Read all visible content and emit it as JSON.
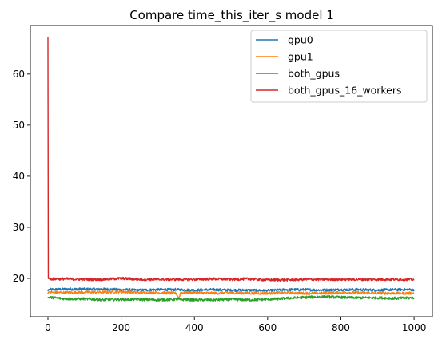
{
  "chart_data": {
    "type": "line",
    "title": "Compare time_this_iter_s model 1",
    "xlabel": "",
    "ylabel": "",
    "xlim": [
      -48,
      1050
    ],
    "ylim": [
      12.5,
      69.5
    ],
    "x_ticks": [
      0,
      200,
      400,
      600,
      800,
      1000
    ],
    "y_ticks": [
      20,
      30,
      40,
      50,
      60
    ],
    "grid": false,
    "legend_position": "upper-right",
    "x_range": [
      0,
      1000
    ],
    "series": [
      {
        "name": "gpu0",
        "color": "#1f77b4",
        "x": [
          0,
          1,
          3,
          50,
          100,
          150,
          200,
          250,
          300,
          350,
          400,
          450,
          500,
          550,
          600,
          650,
          700,
          750,
          800,
          850,
          900,
          950,
          1000
        ],
        "values": [
          17.5,
          17.8,
          17.8,
          17.9,
          17.9,
          17.9,
          17.8,
          17.7,
          17.8,
          17.8,
          17.7,
          17.8,
          17.7,
          17.7,
          17.6,
          17.8,
          17.8,
          17.7,
          17.8,
          17.8,
          17.7,
          17.8,
          17.8
        ]
      },
      {
        "name": "gpu1",
        "color": "#ff7f0e",
        "x": [
          0,
          1,
          3,
          50,
          100,
          150,
          200,
          250,
          300,
          350,
          358,
          362,
          400,
          450,
          500,
          550,
          600,
          650,
          700,
          750,
          800,
          850,
          900,
          950,
          1000
        ],
        "values": [
          17.0,
          17.3,
          17.3,
          17.2,
          17.3,
          17.3,
          17.4,
          17.2,
          17.2,
          17.1,
          16.0,
          17.2,
          17.2,
          17.1,
          17.2,
          17.1,
          17.1,
          17.2,
          17.1,
          17.1,
          17.2,
          17.2,
          17.1,
          17.1,
          17.1
        ]
      },
      {
        "name": "both_gpus",
        "color": "#2ca02c",
        "x": [
          0,
          1,
          3,
          50,
          100,
          150,
          200,
          250,
          300,
          350,
          400,
          450,
          500,
          550,
          600,
          650,
          700,
          750,
          800,
          850,
          900,
          950,
          1000
        ],
        "values": [
          16.2,
          16.3,
          16.3,
          16.0,
          16.0,
          15.8,
          15.9,
          15.9,
          15.8,
          15.9,
          15.8,
          15.8,
          15.9,
          15.8,
          15.9,
          16.1,
          16.3,
          16.4,
          16.3,
          16.2,
          16.2,
          16.1,
          16.2
        ]
      },
      {
        "name": "both_gpus_16_workers",
        "color": "#d62728",
        "x": [
          0,
          1,
          3,
          50,
          100,
          150,
          200,
          250,
          300,
          350,
          400,
          450,
          500,
          550,
          600,
          650,
          700,
          750,
          800,
          850,
          900,
          950,
          1000
        ],
        "values": [
          67.2,
          20.0,
          19.9,
          19.9,
          19.8,
          19.8,
          20.0,
          19.8,
          19.8,
          19.8,
          19.8,
          19.9,
          19.8,
          19.9,
          19.7,
          19.7,
          19.8,
          19.8,
          19.8,
          19.8,
          19.8,
          19.8,
          19.8
        ]
      }
    ]
  }
}
